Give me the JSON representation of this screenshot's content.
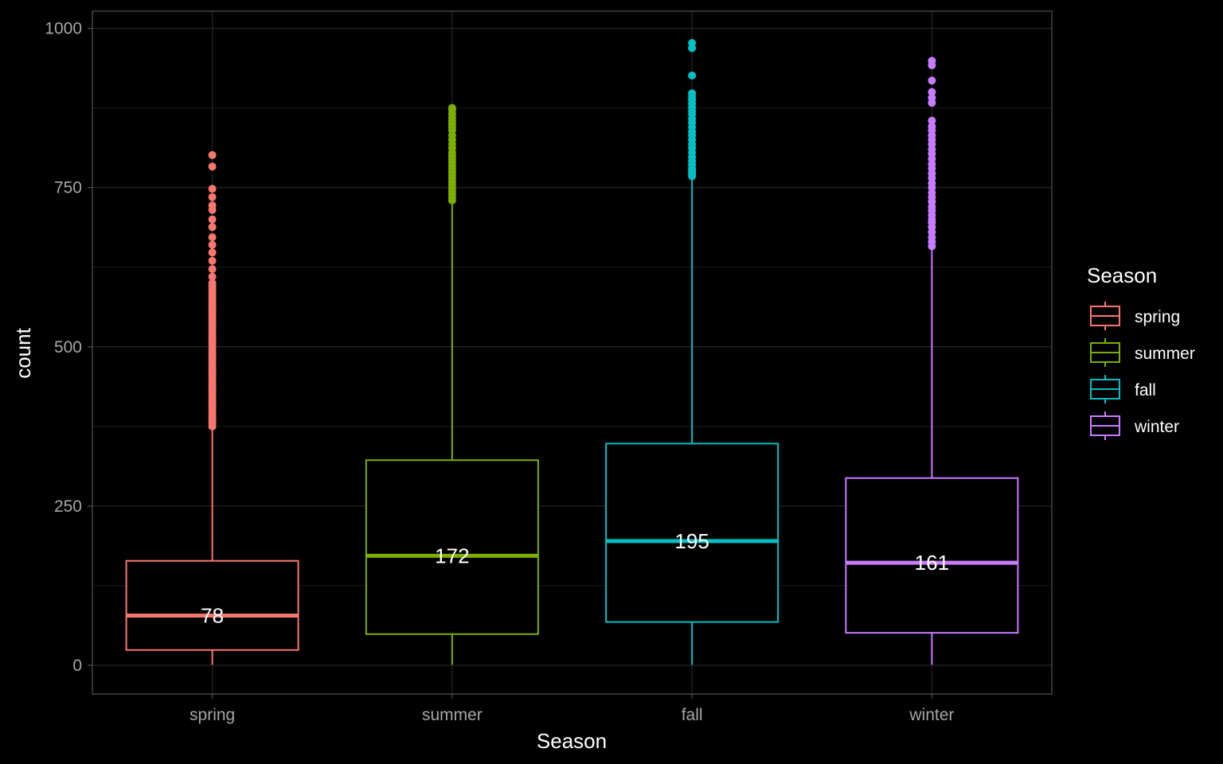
{
  "chart_data": {
    "type": "box",
    "xlabel": "Season",
    "ylabel": "count",
    "ylim": [
      -45,
      1027
    ],
    "y_ticks": [
      0,
      250,
      500,
      750,
      1000
    ],
    "y_tick_labels": [
      "0",
      "250",
      "500",
      "750",
      "1000"
    ],
    "grid": true,
    "legend": {
      "title": "Season",
      "position": "right"
    },
    "categories": [
      "spring",
      "summer",
      "fall",
      "winter"
    ],
    "series": [
      {
        "name": "spring",
        "color": "#F8766D",
        "q1": 24,
        "median": 78,
        "q3": 164,
        "whisker_low": 1,
        "whisker_high": 373,
        "median_label": "78",
        "outliers": [
          375,
          380,
          385,
          390,
          395,
          400,
          405,
          410,
          415,
          420,
          425,
          430,
          435,
          440,
          445,
          450,
          455,
          460,
          465,
          470,
          475,
          480,
          485,
          490,
          495,
          500,
          505,
          510,
          515,
          520,
          525,
          530,
          535,
          540,
          545,
          550,
          555,
          560,
          565,
          570,
          575,
          580,
          585,
          590,
          595,
          600,
          610,
          622,
          635,
          648,
          660,
          672,
          688,
          700,
          715,
          722,
          735,
          748,
          783,
          801
        ]
      },
      {
        "name": "summer",
        "color": "#7CAE00",
        "q1": 49,
        "median": 172,
        "q3": 322,
        "whisker_low": 1,
        "whisker_high": 729,
        "median_label": "172",
        "outliers": [
          730,
          735,
          740,
          745,
          750,
          755,
          760,
          765,
          770,
          775,
          780,
          785,
          790,
          795,
          800,
          805,
          812,
          818,
          825,
          832,
          840,
          845,
          850,
          855,
          860,
          866,
          872,
          875
        ]
      },
      {
        "name": "fall",
        "color": "#00BFC4",
        "q1": 68,
        "median": 195,
        "q3": 348,
        "whisker_low": 1,
        "whisker_high": 765,
        "median_label": "195",
        "outliers": [
          768,
          772,
          776,
          780,
          786,
          792,
          798,
          805,
          812,
          818,
          825,
          832,
          838,
          845,
          852,
          858,
          865,
          870,
          876,
          882,
          888,
          893,
          898,
          926,
          969,
          977
        ]
      },
      {
        "name": "winter",
        "color": "#C77CFF",
        "q1": 51,
        "median": 161,
        "q3": 294,
        "whisker_low": 1,
        "whisker_high": 655,
        "median_label": "161",
        "outliers": [
          658,
          665,
          672,
          680,
          688,
          695,
          700,
          707,
          714,
          720,
          728,
          735,
          742,
          750,
          757,
          765,
          772,
          780,
          787,
          795,
          803,
          810,
          818,
          825,
          832,
          840,
          846,
          855,
          883,
          891,
          900,
          918,
          942,
          949
        ]
      }
    ]
  }
}
